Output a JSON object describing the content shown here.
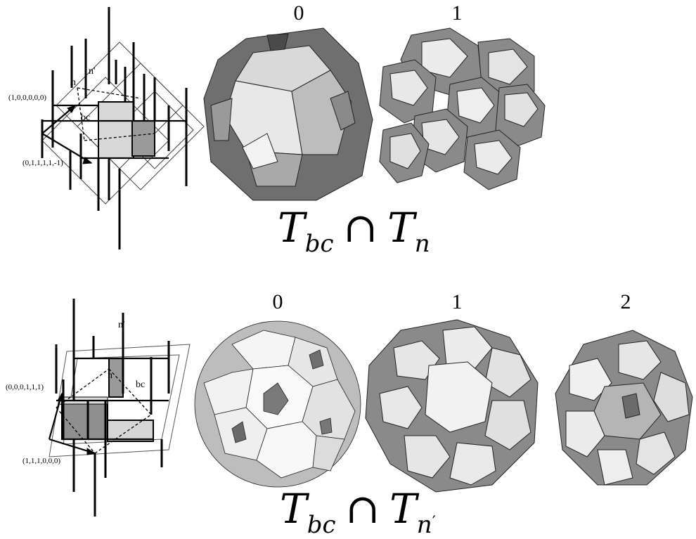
{
  "top_row": {
    "diagram_labels": {
      "vector_a": "(1,0,0,0,0,0)",
      "vector_b": "(0,1,1,1,1,-1)",
      "region_n_prime": "n'",
      "region_n": "n",
      "region_bc": "bc"
    },
    "shell_labels": [
      "0",
      "1"
    ],
    "formula": {
      "T": "T",
      "sub1": "bc",
      "cap": "∩",
      "sub2": "n"
    }
  },
  "bottom_row": {
    "diagram_labels": {
      "vector_a": "(0,0,0,1,1,1)",
      "vector_b": "(1,1,1,0,0,0)",
      "region_n_prime": "n'",
      "region_n": "n",
      "region_bc": "bc"
    },
    "shell_labels": [
      "0",
      "1",
      "2"
    ],
    "formula": {
      "T": "T",
      "sub1": "bc",
      "cap": "∩",
      "sub2": "n",
      "prime": "′"
    }
  },
  "colors": {
    "dark_face": "#6f6f6f",
    "mid_face": "#a9a9a9",
    "light_face": "#e6e6e6",
    "highlight": "#f7f7f7"
  }
}
